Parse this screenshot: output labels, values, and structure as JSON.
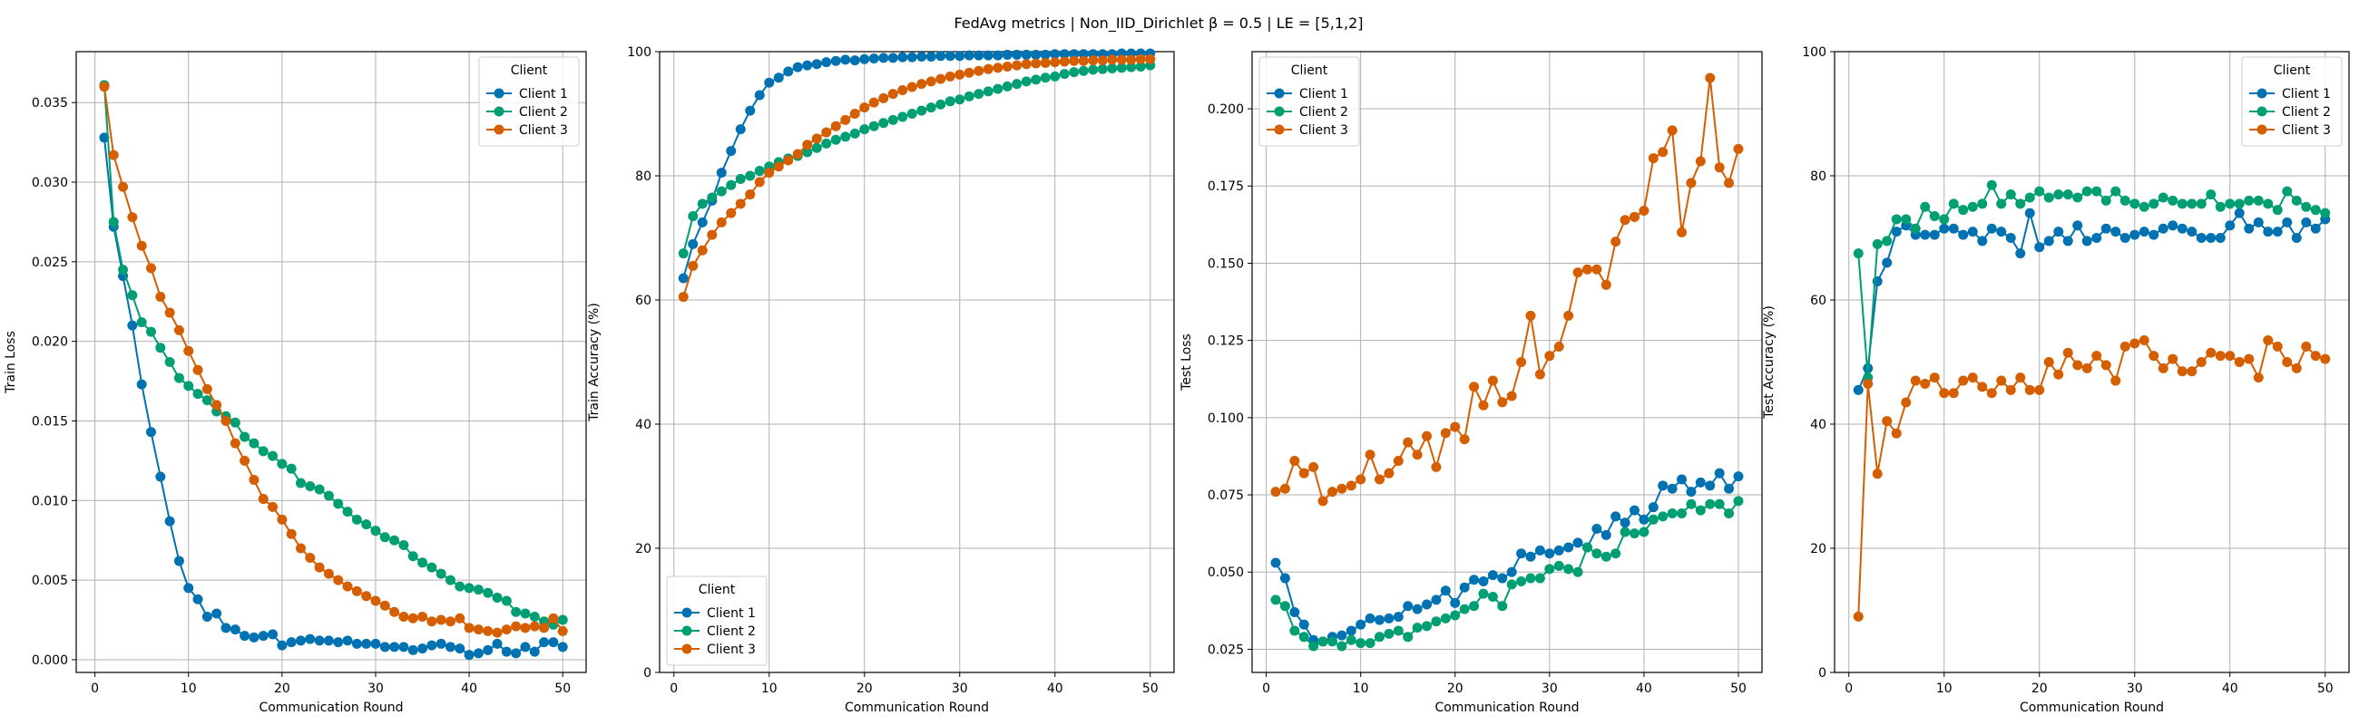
{
  "figure": {
    "title": "FedAvg metrics | Non_IID_Dirichlet β = 0.5 | LE = [5,1,2]",
    "legend_title": "Client",
    "colors": {
      "Client 1": "#0072b2",
      "Client 2": "#009e73",
      "Client 3": "#d55e00"
    }
  },
  "chart_data": [
    {
      "type": "line",
      "xlabel": "Communication Round",
      "ylabel": "Train Loss",
      "xlim": [
        -2,
        52.5
      ],
      "ylim": [
        -0.0008,
        0.0382
      ],
      "xticks": [
        0,
        10,
        20,
        30,
        40,
        50
      ],
      "yticks": [
        0.0,
        0.005,
        0.01,
        0.015,
        0.02,
        0.025,
        0.03,
        0.035
      ],
      "ytick_decimals": 3,
      "grid": true,
      "legend_position": "top-right",
      "x_start": 1,
      "series": [
        {
          "name": "Client 1",
          "values": [
            0.0328,
            0.0272,
            0.0241,
            0.021,
            0.0173,
            0.0143,
            0.0115,
            0.0087,
            0.0062,
            0.0045,
            0.0038,
            0.0027,
            0.0029,
            0.002,
            0.0019,
            0.0015,
            0.0014,
            0.0015,
            0.0016,
            0.0009,
            0.0011,
            0.0012,
            0.0013,
            0.0012,
            0.0012,
            0.0011,
            0.0012,
            0.001,
            0.001,
            0.001,
            0.0008,
            0.0008,
            0.0008,
            0.0006,
            0.0007,
            0.0009,
            0.001,
            0.0008,
            0.0007,
            0.0003,
            0.0004,
            0.0006,
            0.001,
            0.0005,
            0.0004,
            0.0008,
            0.0005,
            0.0011,
            0.0011,
            0.0008
          ]
        },
        {
          "name": "Client 2",
          "values": [
            0.0361,
            0.0275,
            0.0245,
            0.0229,
            0.0212,
            0.0206,
            0.0196,
            0.0187,
            0.0177,
            0.0172,
            0.0167,
            0.0163,
            0.0156,
            0.0153,
            0.0149,
            0.014,
            0.0136,
            0.0131,
            0.0128,
            0.0123,
            0.012,
            0.0111,
            0.0109,
            0.0107,
            0.0103,
            0.0098,
            0.0093,
            0.0088,
            0.0085,
            0.0081,
            0.0077,
            0.0075,
            0.0072,
            0.0065,
            0.0061,
            0.0058,
            0.0054,
            0.005,
            0.0046,
            0.0045,
            0.0044,
            0.0042,
            0.0039,
            0.0037,
            0.003,
            0.0029,
            0.0027,
            0.0024,
            0.0022,
            0.0025
          ]
        },
        {
          "name": "Client 3",
          "values": [
            0.036,
            0.0317,
            0.0297,
            0.0278,
            0.026,
            0.0246,
            0.0228,
            0.0218,
            0.0207,
            0.0194,
            0.0182,
            0.017,
            0.016,
            0.015,
            0.0136,
            0.0125,
            0.0113,
            0.0101,
            0.0096,
            0.0088,
            0.0079,
            0.007,
            0.0064,
            0.0058,
            0.0054,
            0.005,
            0.0046,
            0.0043,
            0.004,
            0.0037,
            0.0034,
            0.003,
            0.0027,
            0.0026,
            0.0027,
            0.0024,
            0.0025,
            0.0024,
            0.0026,
            0.002,
            0.0019,
            0.0018,
            0.0017,
            0.0019,
            0.0021,
            0.002,
            0.0021,
            0.002,
            0.0026,
            0.0018
          ]
        }
      ]
    },
    {
      "type": "line",
      "xlabel": "Communication Round",
      "ylabel": "Train Accuracy (%)",
      "xlim": [
        -1.5,
        52.5
      ],
      "ylim": [
        0,
        100
      ],
      "xticks": [
        0,
        10,
        20,
        30,
        40,
        50
      ],
      "yticks": [
        0,
        20,
        40,
        60,
        80,
        100
      ],
      "ytick_decimals": 0,
      "grid": true,
      "legend_position": "bottom-left",
      "x_start": 1,
      "series": [
        {
          "name": "Client 1",
          "values": [
            63.5,
            69.0,
            72.5,
            76.0,
            80.5,
            84.0,
            87.5,
            90.5,
            93.0,
            95.0,
            95.8,
            96.8,
            97.5,
            97.8,
            98.0,
            98.3,
            98.5,
            98.7,
            98.6,
            98.8,
            98.9,
            99.0,
            99.0,
            99.1,
            99.1,
            99.2,
            99.2,
            99.3,
            99.3,
            99.3,
            99.4,
            99.4,
            99.4,
            99.4,
            99.5,
            99.5,
            99.5,
            99.5,
            99.5,
            99.6,
            99.6,
            99.6,
            99.6,
            99.6,
            99.6,
            99.6,
            99.7,
            99.7,
            99.7,
            99.7
          ]
        },
        {
          "name": "Client 2",
          "values": [
            67.5,
            73.5,
            75.5,
            76.5,
            77.5,
            78.5,
            79.5,
            80.0,
            80.8,
            81.5,
            82.2,
            82.8,
            83.2,
            83.8,
            84.5,
            85.2,
            85.8,
            86.3,
            86.8,
            87.5,
            88.0,
            88.5,
            89.0,
            89.5,
            90.0,
            90.5,
            91.0,
            91.5,
            92.0,
            92.3,
            92.8,
            93.2,
            93.6,
            94.0,
            94.4,
            94.8,
            95.2,
            95.5,
            95.8,
            96.0,
            96.4,
            96.7,
            96.9,
            97.1,
            97.2,
            97.3,
            97.4,
            97.5,
            97.6,
            97.8
          ]
        },
        {
          "name": "Client 3",
          "values": [
            60.5,
            65.5,
            68.0,
            70.5,
            72.5,
            74.0,
            75.5,
            77.0,
            79.0,
            80.5,
            81.5,
            82.5,
            83.5,
            85.0,
            86.0,
            87.0,
            88.0,
            89.0,
            90.0,
            91.0,
            91.8,
            92.5,
            93.2,
            93.8,
            94.3,
            94.8,
            95.2,
            95.6,
            96.0,
            96.3,
            96.6,
            96.9,
            97.2,
            97.4,
            97.6,
            97.8,
            98.0,
            98.1,
            98.2,
            98.3,
            98.4,
            98.5,
            98.5,
            98.6,
            98.6,
            98.7,
            98.7,
            98.7,
            98.8,
            98.8
          ]
        }
      ]
    },
    {
      "type": "line",
      "xlabel": "Communication Round",
      "ylabel": "Test Loss",
      "xlim": [
        -1.5,
        52.5
      ],
      "ylim": [
        0.0175,
        0.2185
      ],
      "xticks": [
        0,
        10,
        20,
        30,
        40,
        50
      ],
      "yticks": [
        0.025,
        0.05,
        0.075,
        0.1,
        0.125,
        0.15,
        0.175,
        0.2
      ],
      "ytick_decimals": 3,
      "grid": true,
      "legend_position": "top-left",
      "x_start": 1,
      "series": [
        {
          "name": "Client 1",
          "values": [
            0.053,
            0.048,
            0.037,
            0.033,
            0.028,
            0.0275,
            0.029,
            0.0295,
            0.031,
            0.033,
            0.035,
            0.0345,
            0.035,
            0.0355,
            0.039,
            0.038,
            0.0395,
            0.041,
            0.044,
            0.04,
            0.045,
            0.0475,
            0.047,
            0.049,
            0.048,
            0.05,
            0.056,
            0.055,
            0.057,
            0.056,
            0.057,
            0.058,
            0.0595,
            0.058,
            0.064,
            0.062,
            0.068,
            0.066,
            0.07,
            0.067,
            0.071,
            0.078,
            0.077,
            0.08,
            0.076,
            0.079,
            0.078,
            0.082,
            0.077,
            0.081
          ]
        },
        {
          "name": "Client 2",
          "values": [
            0.041,
            0.039,
            0.031,
            0.029,
            0.026,
            0.0275,
            0.0275,
            0.026,
            0.028,
            0.027,
            0.027,
            0.029,
            0.03,
            0.031,
            0.029,
            0.032,
            0.0325,
            0.034,
            0.035,
            0.036,
            0.038,
            0.039,
            0.043,
            0.042,
            0.039,
            0.046,
            0.047,
            0.048,
            0.048,
            0.051,
            0.052,
            0.051,
            0.05,
            0.058,
            0.056,
            0.055,
            0.056,
            0.063,
            0.0625,
            0.063,
            0.067,
            0.068,
            0.069,
            0.069,
            0.072,
            0.07,
            0.072,
            0.072,
            0.069,
            0.073
          ]
        },
        {
          "name": "Client 3",
          "values": [
            0.076,
            0.077,
            0.086,
            0.082,
            0.084,
            0.073,
            0.076,
            0.077,
            0.078,
            0.08,
            0.088,
            0.08,
            0.082,
            0.086,
            0.092,
            0.088,
            0.094,
            0.084,
            0.095,
            0.097,
            0.093,
            0.11,
            0.104,
            0.112,
            0.105,
            0.107,
            0.118,
            0.133,
            0.114,
            0.12,
            0.123,
            0.133,
            0.147,
            0.148,
            0.148,
            0.143,
            0.157,
            0.164,
            0.165,
            0.167,
            0.184,
            0.186,
            0.193,
            0.16,
            0.176,
            0.183,
            0.21,
            0.181,
            0.176,
            0.187
          ]
        }
      ]
    },
    {
      "type": "line",
      "xlabel": "Communication Round",
      "ylabel": "Test Accuracy (%)",
      "xlim": [
        -1.5,
        52.5
      ],
      "ylim": [
        0,
        100
      ],
      "xticks": [
        0,
        10,
        20,
        30,
        40,
        50
      ],
      "yticks": [
        0,
        20,
        40,
        60,
        80,
        100
      ],
      "ytick_decimals": 0,
      "grid": true,
      "legend_position": "top-right",
      "x_start": 1,
      "series": [
        {
          "name": "Client 1",
          "values": [
            45.5,
            49.0,
            63.0,
            66.0,
            71.0,
            72.0,
            70.5,
            70.5,
            70.5,
            71.5,
            71.5,
            70.5,
            71.0,
            69.5,
            71.5,
            71.0,
            70.0,
            67.5,
            74.0,
            68.5,
            69.5,
            71.0,
            69.5,
            72.0,
            69.5,
            70.0,
            71.5,
            71.0,
            70.0,
            70.5,
            71.0,
            70.5,
            71.5,
            72.0,
            71.5,
            71.0,
            70.0,
            70.0,
            70.0,
            72.0,
            74.0,
            71.5,
            72.5,
            71.0,
            71.0,
            72.5,
            70.0,
            72.5,
            71.5,
            73.0
          ]
        },
        {
          "name": "Client 2",
          "values": [
            67.5,
            47.5,
            69.0,
            69.5,
            73.0,
            73.0,
            71.5,
            75.0,
            73.5,
            73.0,
            75.5,
            74.5,
            75.0,
            75.5,
            78.5,
            75.5,
            77.0,
            75.5,
            76.5,
            77.5,
            76.5,
            77.0,
            77.0,
            76.5,
            77.5,
            77.5,
            76.0,
            77.5,
            76.0,
            75.5,
            75.0,
            75.5,
            76.5,
            76.0,
            75.5,
            75.5,
            75.5,
            77.0,
            75.0,
            75.5,
            75.5,
            76.0,
            76.0,
            75.5,
            74.5,
            77.5,
            76.0,
            75.0,
            74.5,
            74.0
          ]
        },
        {
          "name": "Client 3",
          "values": [
            9.0,
            46.5,
            32.0,
            40.5,
            38.5,
            43.5,
            47.0,
            46.5,
            47.5,
            45.0,
            45.0,
            47.0,
            47.5,
            46.0,
            45.0,
            47.0,
            45.5,
            47.5,
            45.5,
            45.5,
            50.0,
            48.0,
            51.5,
            49.5,
            49.0,
            51.0,
            49.5,
            47.0,
            52.5,
            53.0,
            53.5,
            51.0,
            49.0,
            50.5,
            48.5,
            48.5,
            50.0,
            51.5,
            51.0,
            51.0,
            50.0,
            50.5,
            47.5,
            53.5,
            52.5,
            50.0,
            49.0,
            52.5,
            51.0,
            50.5
          ]
        }
      ]
    }
  ]
}
